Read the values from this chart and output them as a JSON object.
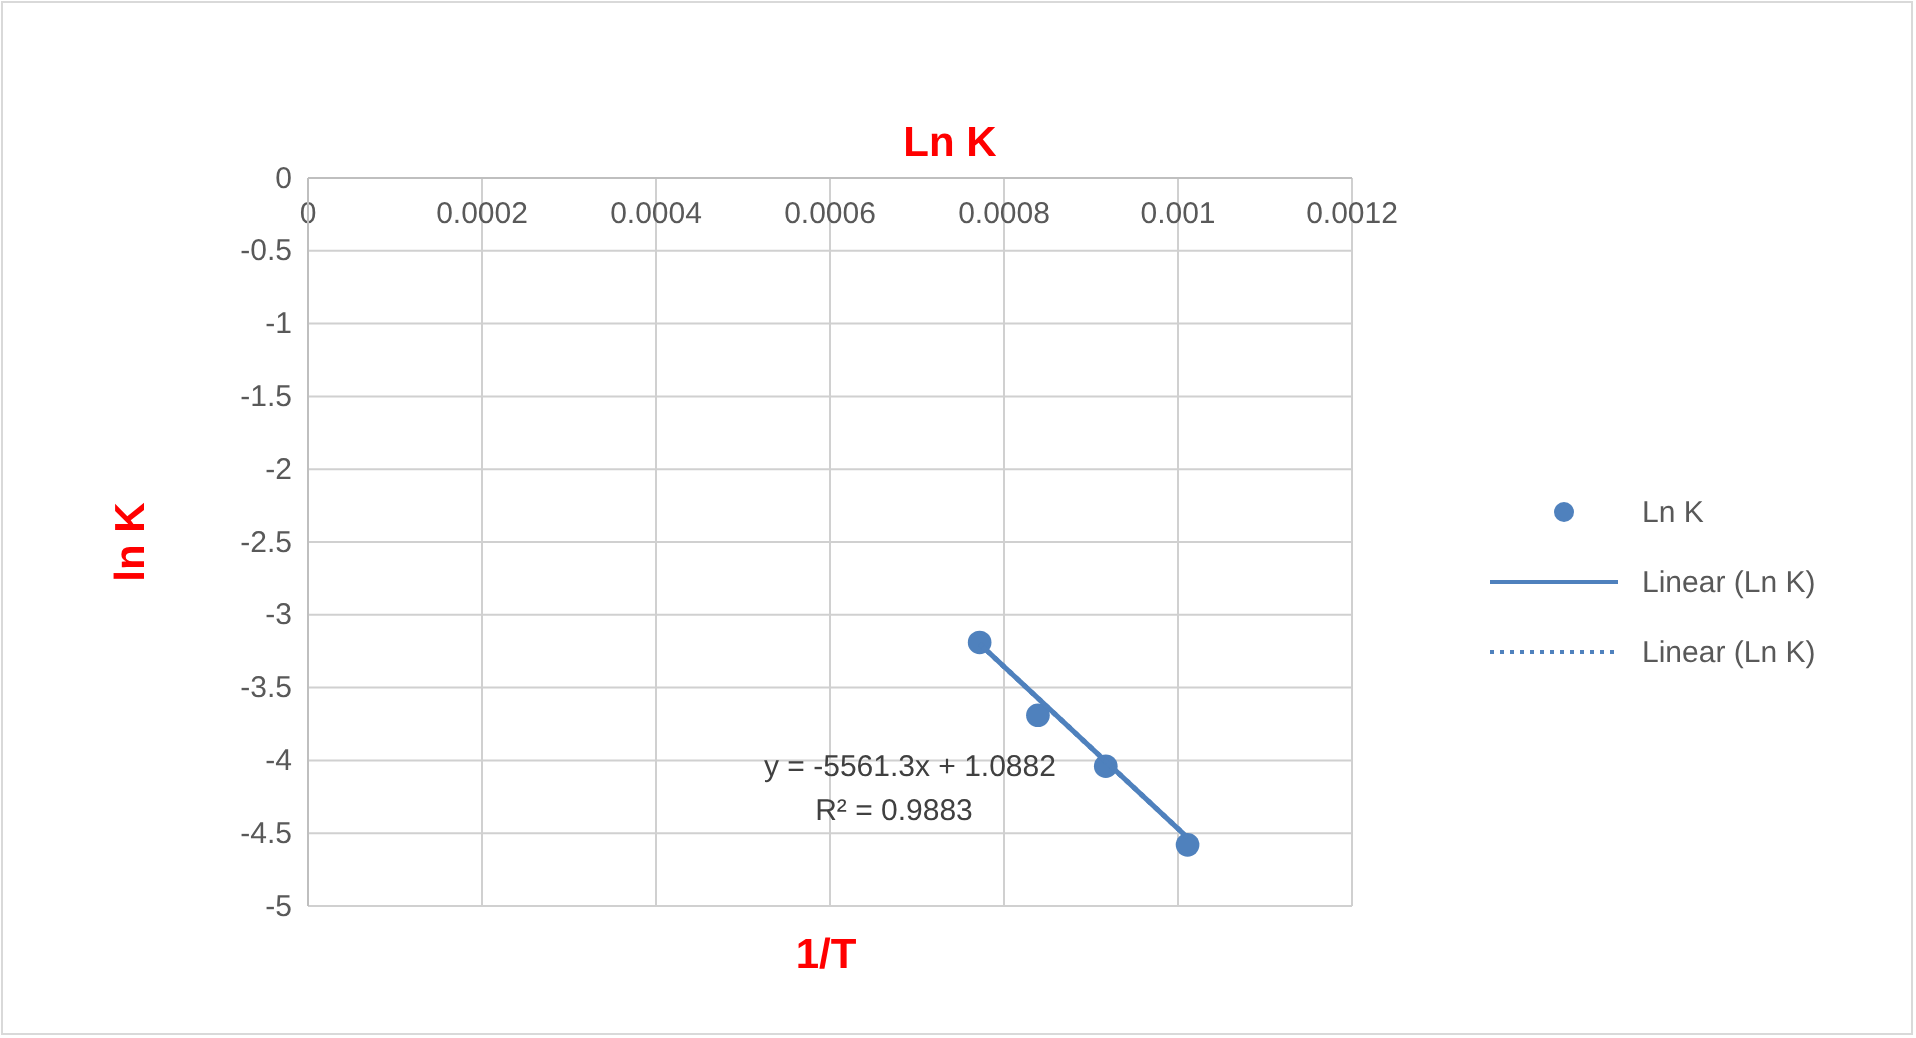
{
  "chart_data": {
    "type": "scatter",
    "title": "Ln K",
    "xlabel": "1/T",
    "ylabel": "ln K",
    "series": [
      {
        "name": "Ln K",
        "color": "#4f81bd",
        "x": [
          0.000772,
          0.000839,
          0.000917,
          0.001011
        ],
        "values": [
          -3.19,
          -3.69,
          -4.04,
          -4.58
        ],
        "marker": "circle"
      },
      {
        "name": "Linear (Ln K)",
        "type": "line",
        "color": "#4f81bd",
        "x": [
          0.000772,
          0.001011
        ],
        "values": [
          -3.2,
          -4.53
        ],
        "line_style": "solid"
      },
      {
        "name": "Linear (Ln K)",
        "type": "line",
        "color": "#4f81bd",
        "x": [
          0.000772,
          0.001011
        ],
        "values": [
          -3.2,
          -4.53
        ],
        "line_style": "dotted"
      }
    ],
    "annotations": [
      "y = -5561.3x + 1.0882",
      "R² = 0.9883"
    ],
    "xlim": [
      0,
      0.0012
    ],
    "xticks": [
      0,
      0.0002,
      0.0004,
      0.0006,
      0.0008,
      0.001,
      0.0012
    ],
    "ylim": [
      -5,
      0
    ],
    "yticks": [
      0,
      -0.5,
      -1,
      -1.5,
      -2,
      -2.5,
      -3,
      -3.5,
      -4,
      -4.5,
      -5
    ],
    "grid": true,
    "legend": "right"
  }
}
